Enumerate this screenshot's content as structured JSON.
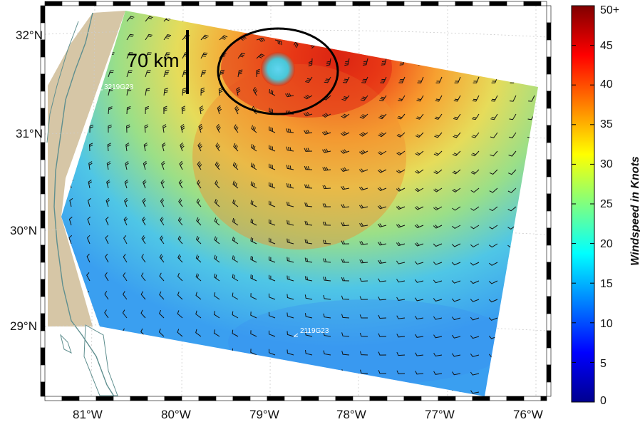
{
  "map": {
    "lat_labels": [
      "32°N",
      "31°N",
      "30°N",
      "29°N"
    ],
    "lon_labels": [
      "81°W",
      "80°W",
      "79°W",
      "78°W",
      "77°W",
      "76°W"
    ],
    "scale_bar_label": "70 km",
    "buoys": [
      {
        "label": "3219G23"
      },
      {
        "label": "2119G23"
      }
    ],
    "colors": {
      "land": "#d6c6a6",
      "coastline": "#5f8f8f",
      "background_ocean": "#ffffff",
      "eye_circle": "#000000"
    }
  },
  "colorbar": {
    "title": "Windspeed in Knots",
    "ticks": [
      "50+",
      "45",
      "40",
      "35",
      "30",
      "25",
      "20",
      "15",
      "10",
      "5",
      "0"
    ],
    "colormap": "jet",
    "range": [
      0,
      50
    ]
  }
}
